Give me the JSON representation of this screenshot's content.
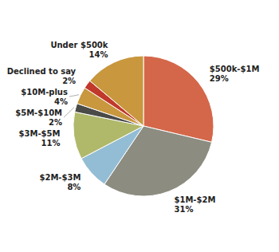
{
  "chart_data": {
    "type": "pie",
    "categories": [
      "$500k-$1M",
      "$1M-$2M",
      "$2M-$3M",
      "$3M-$5M",
      "$5M-$10M",
      "$10M-plus",
      "Declined to say",
      "Under $500k"
    ],
    "values": [
      29,
      31,
      8,
      11,
      2,
      4,
      2,
      14
    ],
    "value_labels": [
      "29%",
      "31%",
      "8%",
      "11%",
      "2%",
      "4%",
      "2%",
      "14%"
    ],
    "colors": [
      "#d4674a",
      "#8c8c80",
      "#93bdd4",
      "#b0b86a",
      "#4a4a48",
      "#c8973e",
      "#c0392b",
      "#c8973e"
    ],
    "data_labels": true
  }
}
